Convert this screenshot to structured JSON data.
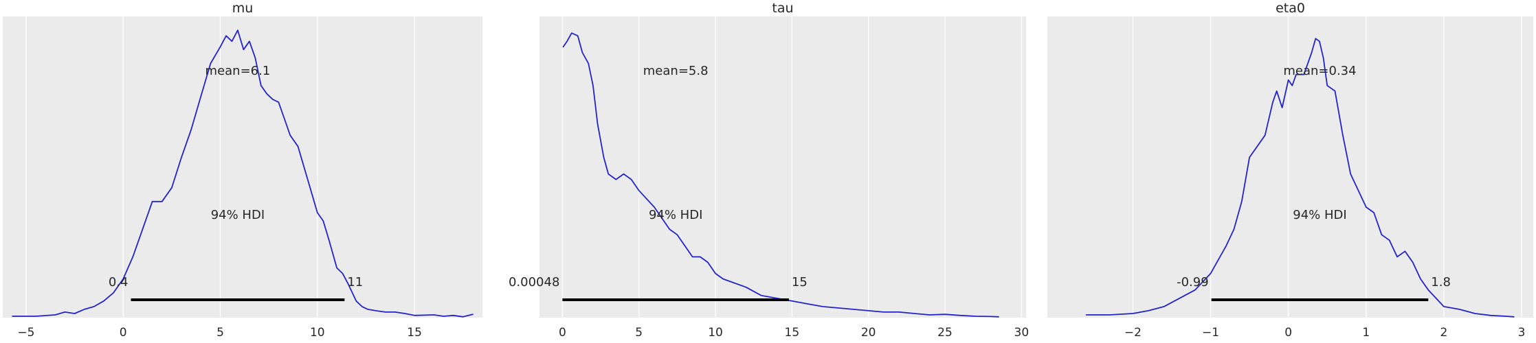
{
  "figure": {
    "background": "#ffffff",
    "axes_background": "#ebebeb",
    "grid_color": "#ffffff",
    "line_color": "#2222cc",
    "hdi_color": "#000000",
    "text_color": "#262626"
  },
  "chart_data": [
    {
      "type": "line",
      "title": "mu",
      "xlabel": "",
      "ylabel": "",
      "xlim": [
        -6.2,
        18.5
      ],
      "ylim": [
        0,
        1.09
      ],
      "xticks": [
        -5,
        0,
        5,
        10,
        15
      ],
      "xtick_labels": [
        "−5",
        "0",
        "5",
        "10",
        "15"
      ],
      "grid": true,
      "series": [
        {
          "x": [
            -5.7,
            -4.5,
            -3.5,
            -3.0,
            -2.5,
            -2.0,
            -1.5,
            -1.0,
            -0.5,
            0.0,
            0.5,
            1.0,
            1.5,
            2.0,
            2.5,
            3.0,
            3.5,
            4.0,
            4.5,
            5.0,
            5.3,
            5.6,
            5.9,
            6.2,
            6.5,
            6.8,
            7.1,
            7.4,
            7.7,
            8.0,
            8.3,
            8.6,
            9.0,
            9.5,
            10.0,
            10.3,
            10.6,
            11.0,
            11.3,
            11.6,
            12.0,
            12.3,
            12.6,
            13.0,
            13.5,
            14.0,
            14.5,
            15.0,
            16.0,
            16.5,
            17.0,
            17.5,
            18.0
          ],
          "y": [
            0.005,
            0.005,
            0.01,
            0.02,
            0.015,
            0.03,
            0.04,
            0.06,
            0.09,
            0.14,
            0.22,
            0.32,
            0.42,
            0.42,
            0.47,
            0.58,
            0.68,
            0.8,
            0.92,
            0.98,
            1.02,
            1.0,
            1.04,
            0.97,
            1.0,
            0.94,
            0.84,
            0.81,
            0.79,
            0.78,
            0.72,
            0.66,
            0.62,
            0.5,
            0.38,
            0.35,
            0.28,
            0.18,
            0.16,
            0.12,
            0.06,
            0.04,
            0.03,
            0.025,
            0.02,
            0.02,
            0.015,
            0.008,
            0.01,
            0.005,
            0.008,
            0.003,
            0.012
          ]
        }
      ],
      "point_estimate": {
        "label": "mean=6.1"
      },
      "hdi": {
        "low": 0.4,
        "high": 11.4,
        "low_label": "0.4",
        "high_label": "11",
        "label": "94% HDI"
      }
    },
    {
      "type": "line",
      "title": "tau",
      "xlabel": "",
      "ylabel": "",
      "xlim": [
        -1.5,
        30.3
      ],
      "ylim": [
        0,
        1.09
      ],
      "xticks": [
        0,
        5,
        10,
        15,
        20,
        25,
        30
      ],
      "xtick_labels": [
        "0",
        "5",
        "10",
        "15",
        "20",
        "25",
        "30"
      ],
      "grid": true,
      "series": [
        {
          "x": [
            0.05,
            0.3,
            0.6,
            1.0,
            1.3,
            1.7,
            2.0,
            2.3,
            2.7,
            3.0,
            3.5,
            4.0,
            4.5,
            5.0,
            5.5,
            6.0,
            6.5,
            7.0,
            7.5,
            8.0,
            8.5,
            9.0,
            9.5,
            10.0,
            10.5,
            11.0,
            12.0,
            13.0,
            14.0,
            15.0,
            16.0,
            17.0,
            18.0,
            19.0,
            20.0,
            21.0,
            22.0,
            23.0,
            24.0,
            25.0,
            26.0,
            27.0,
            28.0,
            28.5
          ],
          "y": [
            0.98,
            1.0,
            1.03,
            1.02,
            0.96,
            0.92,
            0.84,
            0.7,
            0.58,
            0.52,
            0.5,
            0.52,
            0.5,
            0.46,
            0.43,
            0.4,
            0.36,
            0.32,
            0.3,
            0.26,
            0.22,
            0.22,
            0.2,
            0.16,
            0.14,
            0.13,
            0.11,
            0.08,
            0.07,
            0.06,
            0.05,
            0.04,
            0.035,
            0.03,
            0.025,
            0.02,
            0.02,
            0.015,
            0.01,
            0.012,
            0.008,
            0.005,
            0.004,
            0.003
          ]
        }
      ],
      "point_estimate": {
        "label": "mean=5.8"
      },
      "hdi": {
        "low": 0.00048,
        "high": 14.8,
        "low_label": "0.00048",
        "high_label": "15",
        "label": "94% HDI"
      }
    },
    {
      "type": "line",
      "title": "eta0",
      "xlabel": "",
      "ylabel": "",
      "xlim": [
        -3.1,
        3.15
      ],
      "ylim": [
        0,
        1.09
      ],
      "xticks": [
        -2,
        -1,
        0,
        1,
        2,
        3
      ],
      "xtick_labels": [
        "−2",
        "−1",
        "0",
        "1",
        "2",
        "3"
      ],
      "grid": true,
      "series": [
        {
          "x": [
            -2.6,
            -2.3,
            -2.0,
            -1.8,
            -1.6,
            -1.4,
            -1.2,
            -1.0,
            -0.9,
            -0.8,
            -0.7,
            -0.6,
            -0.5,
            -0.4,
            -0.3,
            -0.2,
            -0.15,
            -0.08,
            0.0,
            0.05,
            0.1,
            0.2,
            0.3,
            0.35,
            0.4,
            0.45,
            0.5,
            0.6,
            0.7,
            0.8,
            0.9,
            1.0,
            1.1,
            1.2,
            1.3,
            1.4,
            1.5,
            1.6,
            1.7,
            1.8,
            1.9,
            2.0,
            2.2,
            2.4,
            2.6,
            2.8,
            2.9
          ],
          "y": [
            0.01,
            0.01,
            0.015,
            0.025,
            0.04,
            0.07,
            0.1,
            0.16,
            0.21,
            0.26,
            0.32,
            0.42,
            0.58,
            0.62,
            0.66,
            0.78,
            0.82,
            0.76,
            0.86,
            0.84,
            0.88,
            0.88,
            0.96,
            1.01,
            1.0,
            0.94,
            0.84,
            0.82,
            0.66,
            0.52,
            0.46,
            0.4,
            0.38,
            0.3,
            0.28,
            0.22,
            0.24,
            0.2,
            0.14,
            0.1,
            0.07,
            0.04,
            0.03,
            0.015,
            0.008,
            0.005,
            0.003
          ]
        }
      ],
      "point_estimate": {
        "label": "mean=0.34"
      },
      "hdi": {
        "low": -0.99,
        "high": 1.8,
        "low_label": "-0.99",
        "high_label": "1.8",
        "label": "94% HDI"
      }
    }
  ]
}
